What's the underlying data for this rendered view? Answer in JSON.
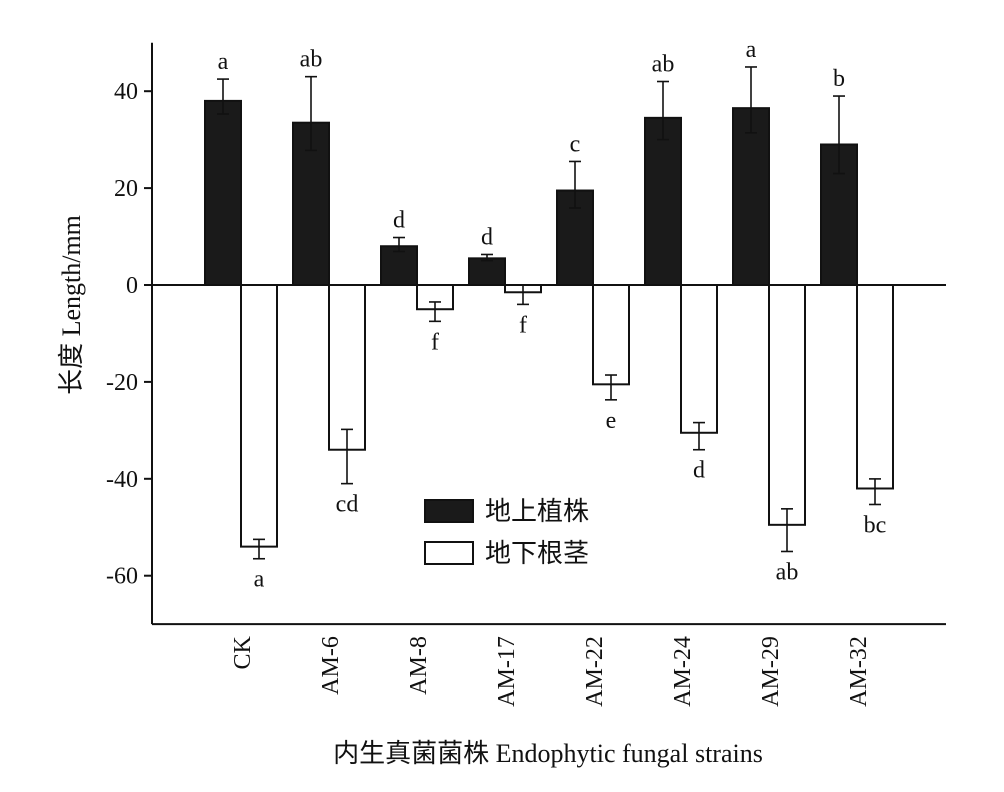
{
  "chart_data": {
    "type": "bar",
    "xlabel": "内生真菌菌株 Endophytic fungal strains",
    "ylabel": "长度 Length/mm",
    "ylim": [
      -70,
      50
    ],
    "yticks": [
      40,
      20,
      0,
      -20,
      -40,
      -60
    ],
    "ytick_labels": [
      "40",
      "20",
      "0",
      "-20",
      "-40",
      "-60"
    ],
    "categories": [
      "CK",
      "AM-6",
      "AM-8",
      "AM-17",
      "AM-22",
      "AM-24",
      "AM-29",
      "AM-32"
    ],
    "legend_position": "center",
    "grid": false,
    "series": [
      {
        "name": "地上植株",
        "color": "#1a1a1a",
        "values": [
          38,
          33.5,
          8,
          5.5,
          19.5,
          34.5,
          36.5,
          29
        ],
        "errors": [
          4.5,
          9.5,
          1.8,
          0.8,
          6,
          7.5,
          8.5,
          10
        ],
        "labels": [
          "a",
          "ab",
          "d",
          "d",
          "c",
          "ab",
          "a",
          "b"
        ]
      },
      {
        "name": "地下根茎",
        "color": "#ffffff",
        "values": [
          -54,
          -34,
          -5,
          -1.5,
          -20.5,
          -30.5,
          -49.5,
          -42
        ],
        "errors": [
          2.5,
          7,
          2.5,
          2.5,
          3.2,
          3.5,
          5.5,
          3.3
        ],
        "labels": [
          "a",
          "cd",
          "f",
          "f",
          "e",
          "d",
          "ab",
          "bc"
        ]
      }
    ]
  }
}
